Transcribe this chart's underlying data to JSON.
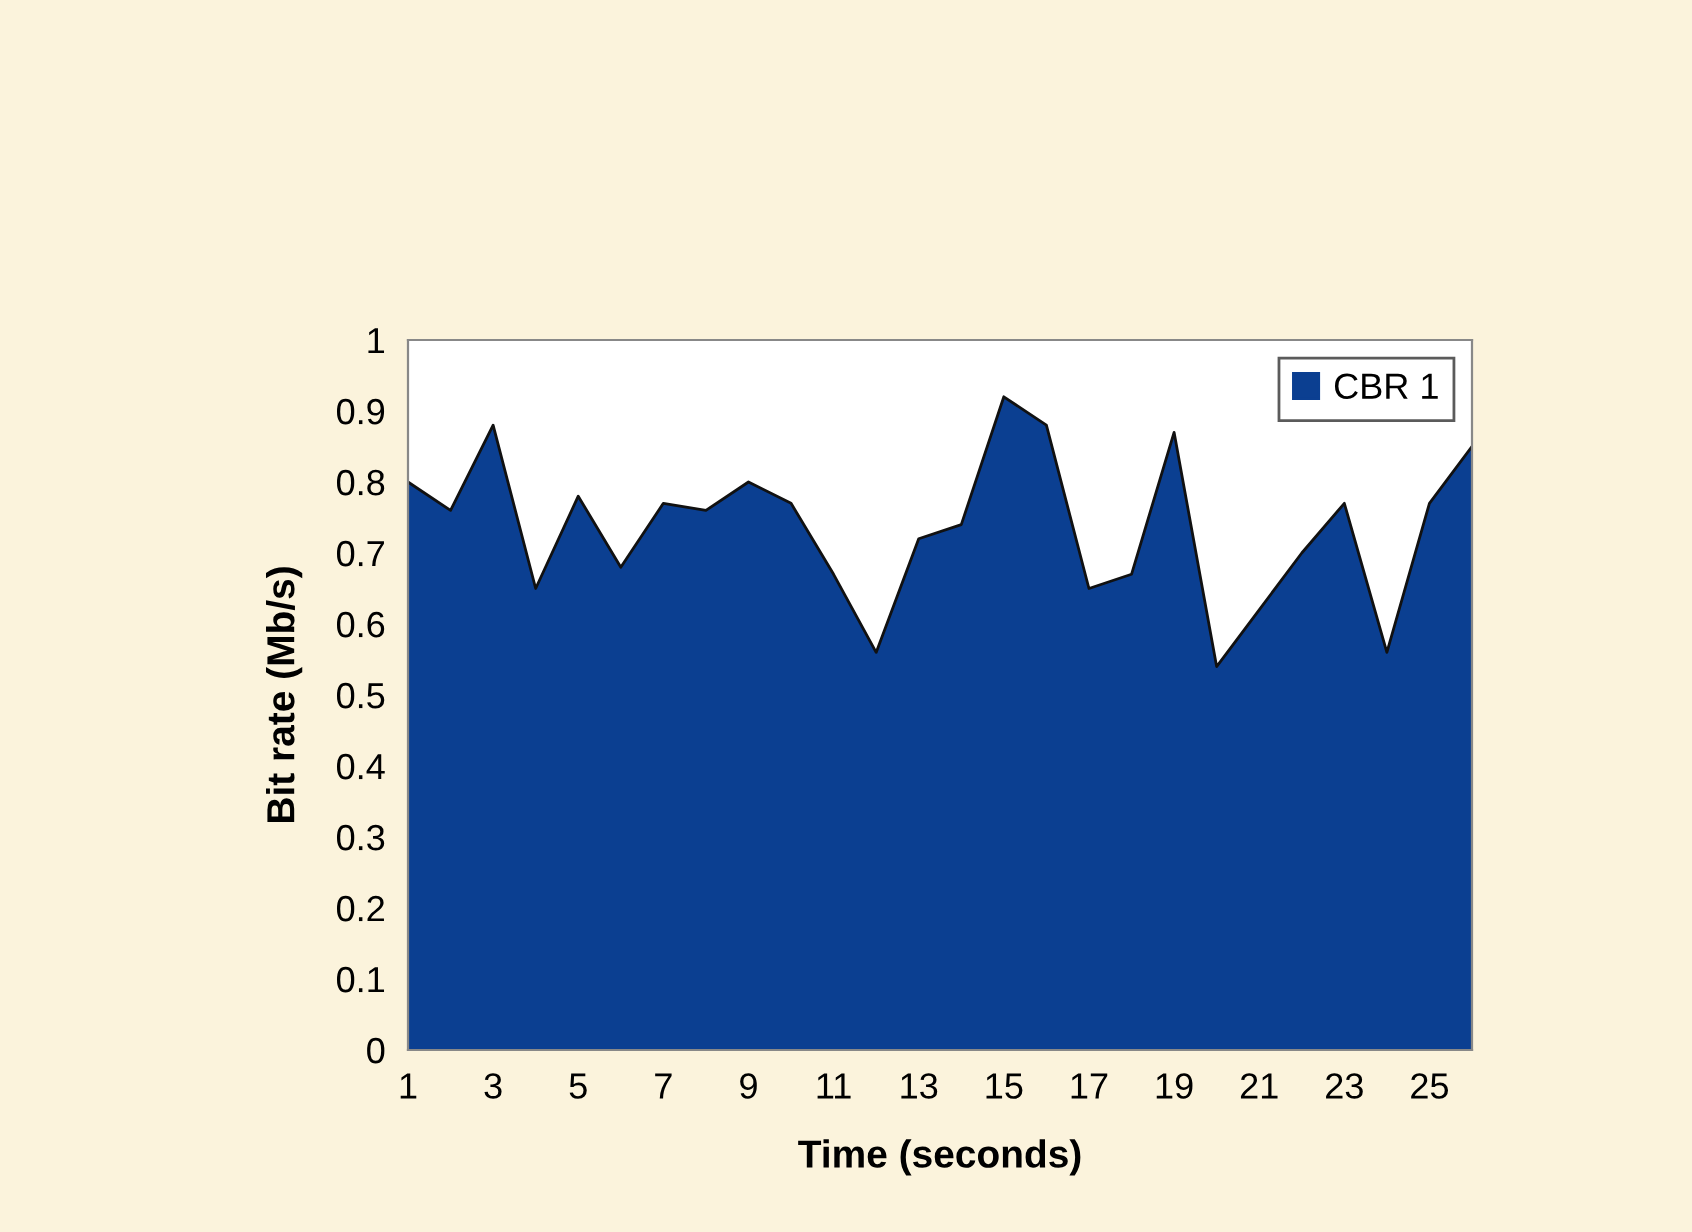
{
  "chart_data": {
    "type": "area",
    "xlabel": "Time (seconds)",
    "ylabel": "Bit rate (Mb/s)",
    "x": [
      1,
      2,
      3,
      4,
      5,
      6,
      7,
      8,
      9,
      10,
      11,
      12,
      13,
      14,
      15,
      16,
      17,
      18,
      19,
      20,
      21,
      22,
      23,
      24,
      25,
      26
    ],
    "series": [
      {
        "name": "CBR 1",
        "color": "#0b3f91",
        "values": [
          0.8,
          0.76,
          0.88,
          0.65,
          0.78,
          0.68,
          0.77,
          0.76,
          0.8,
          0.77,
          0.67,
          0.56,
          0.72,
          0.74,
          0.92,
          0.88,
          0.65,
          0.67,
          0.87,
          0.54,
          0.62,
          0.7,
          0.77,
          0.56,
          0.77,
          0.85
        ]
      }
    ],
    "xlim": [
      1,
      26
    ],
    "ylim": [
      0,
      1
    ],
    "xticks": [
      1,
      3,
      5,
      7,
      9,
      11,
      13,
      15,
      17,
      19,
      21,
      23,
      25
    ],
    "yticks": [
      0,
      0.1,
      0.2,
      0.3,
      0.4,
      0.5,
      0.6,
      0.7,
      0.8,
      0.9,
      1
    ],
    "grid": false,
    "legend": "top right"
  }
}
